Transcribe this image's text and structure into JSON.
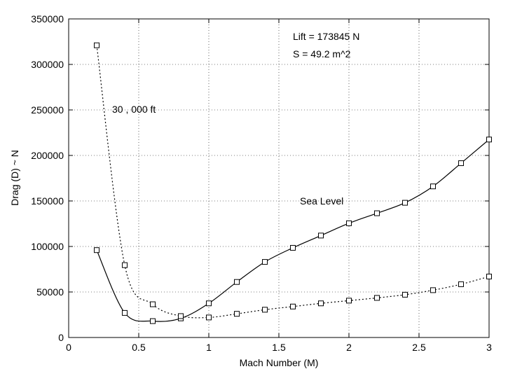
{
  "chart_data": {
    "type": "line",
    "title": "",
    "xlabel": "Mach Number (M)",
    "ylabel": "Drag (D) ~ N",
    "xlim": [
      0,
      3
    ],
    "ylim": [
      0,
      350000
    ],
    "xticks": [
      0,
      0.5,
      1,
      1.5,
      2,
      2.5,
      3
    ],
    "xtick_labels": [
      "0",
      "0.5",
      "1",
      "1.5",
      "2",
      "2.5",
      "3"
    ],
    "yticks": [
      0,
      50000,
      100000,
      150000,
      200000,
      250000,
      300000,
      350000
    ],
    "ytick_labels": [
      "0",
      "50000",
      "100000",
      "150000",
      "200000",
      "250000",
      "300000",
      "350000"
    ],
    "grid": true,
    "annotations": [
      {
        "text": "Lift = 173845 N"
      },
      {
        "text": "S = 49.2 m^2"
      }
    ],
    "series": [
      {
        "name": "Sea Level",
        "line_style": "solid",
        "marker": "square",
        "x": [
          0.2,
          0.4,
          0.6,
          0.8,
          1.0,
          1.2,
          1.4,
          1.6,
          1.8,
          2.0,
          2.2,
          2.4,
          2.6,
          2.8,
          3.0
        ],
        "y": [
          96000,
          27000,
          18000,
          21000,
          37500,
          61000,
          83000,
          98500,
          112000,
          125500,
          136500,
          148000,
          166000,
          191500,
          217500
        ]
      },
      {
        "name": "30 , 000 ft",
        "line_style": "dotted",
        "marker": "square",
        "x": [
          0.2,
          0.4,
          0.6,
          0.8,
          1.0,
          1.2,
          1.4,
          1.6,
          1.8,
          2.0,
          2.2,
          2.4,
          2.6,
          2.8,
          3.0
        ],
        "y": [
          321000,
          79500,
          36500,
          23500,
          22000,
          26000,
          30500,
          34000,
          37500,
          40500,
          43500,
          47000,
          52000,
          58500,
          67000
        ]
      }
    ]
  }
}
